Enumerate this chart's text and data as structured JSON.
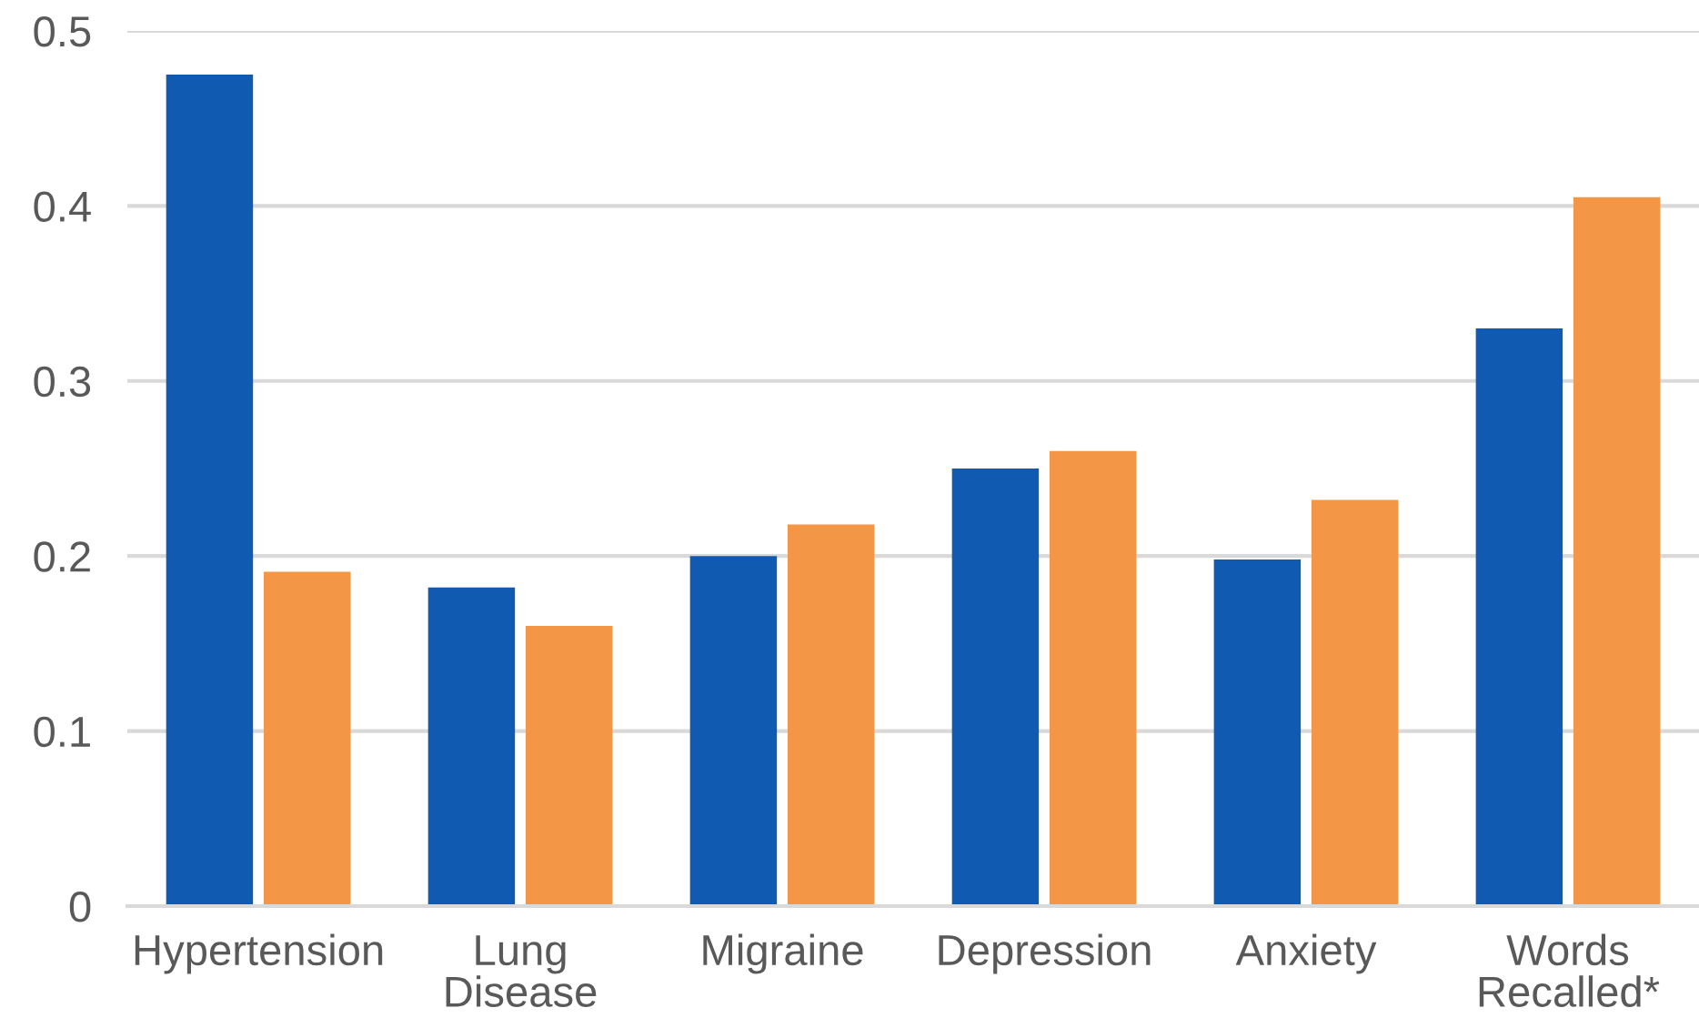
{
  "chart_data": {
    "type": "bar",
    "categories": [
      "Hypertension",
      "Lung\nDisease",
      "Migraine",
      "Depression",
      "Anxiety",
      "Words\nRecalled*"
    ],
    "series": [
      {
        "color": "#115ab2",
        "values": [
          0.475,
          0.182,
          0.2,
          0.25,
          0.198,
          0.33
        ]
      },
      {
        "color": "#f39646",
        "values": [
          0.191,
          0.16,
          0.218,
          0.26,
          0.232,
          0.405
        ]
      }
    ],
    "ylim": [
      0,
      0.5
    ],
    "yticks": [
      0,
      0.1,
      0.2,
      0.3,
      0.4,
      0.5
    ],
    "grid": "y"
  }
}
